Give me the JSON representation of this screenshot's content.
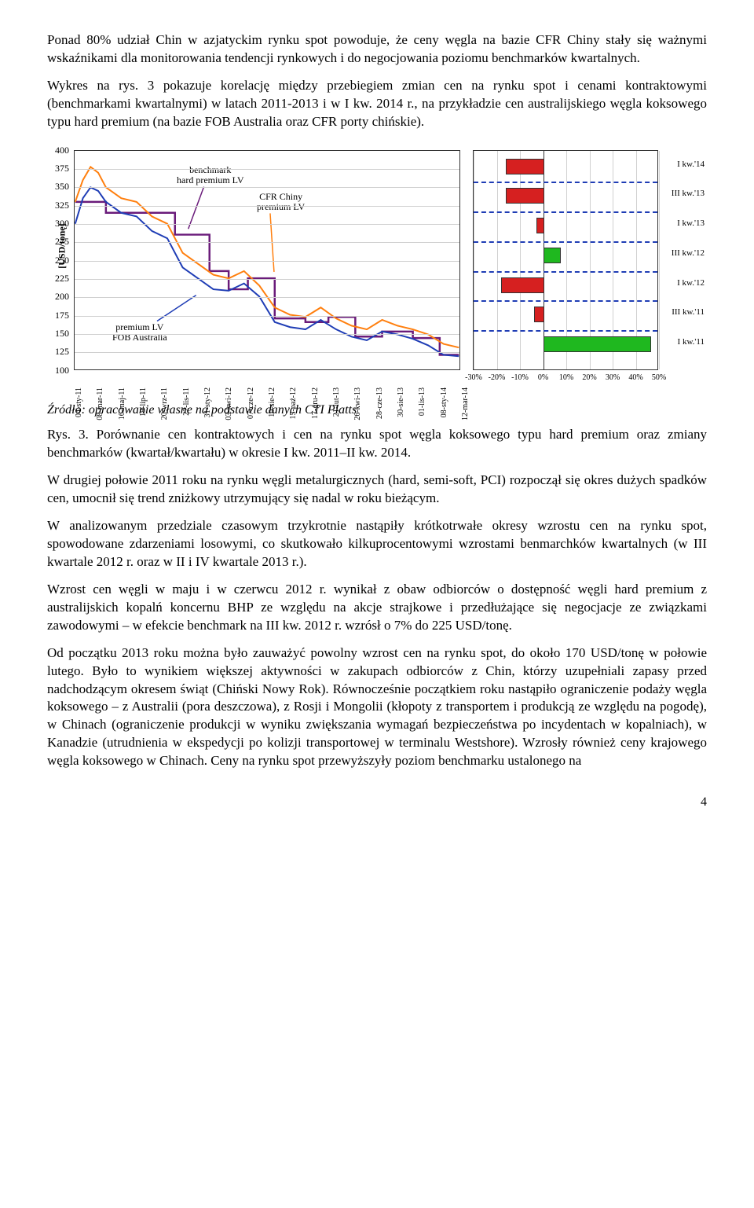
{
  "paragraphs": {
    "p1": "Ponad 80% udział Chin w azjatyckim rynku spot powoduje, że ceny węgla na bazie CFR Chiny stały się ważnymi wskaźnikami dla monitorowania tendencji rynkowych i do negocjowania poziomu benchmarków kwartalnych.",
    "p2": "Wykres na rys. 3 pokazuje korelację między przebiegiem zmian cen na rynku spot i cenami kontraktowymi (benchmarkami kwartalnymi) w latach 2011-2013 i w I kw. 2014 r., na przykładzie cen australijskiego węgla koksowego typu hard premium (na bazie FOB Australia oraz CFR porty chińskie).",
    "src": "Źródło: opracowanie własne na podstawie danych CTI Platts",
    "caption": "Rys. 3. Porównanie cen kontraktowych i cen na rynku spot węgla koksowego typu hard premium oraz zmiany benchmarków (kwartał/kwartału) w okresie I kw. 2011–II kw. 2014.",
    "p3": "W drugiej połowie 2011 roku na rynku węgli metalurgicznych (hard, semi-soft, PCI) rozpoczął się okres dużych spadków cen, umocnił się trend zniżkowy utrzymujący się nadal w roku bieżącym.",
    "p4": "W analizowanym przedziale czasowym trzykrotnie nastąpiły krótkotrwałe okresy wzrostu cen na rynku spot, spowodowane zdarzeniami losowymi, co skutkowało kilkuprocentowymi wzrostami benmarchków kwartalnych (w III kwartale 2012 r. oraz w II i IV kwartale 2013 r.).",
    "p5": "Wzrost cen węgli w maju i w czerwcu 2012 r. wynikał z obaw odbiorców o dostępność węgli hard premium z australijskich kopalń koncernu BHP ze względu na akcje strajkowe i przedłużające się negocjacje ze związkami zawodowymi – w efekcie benchmark na III kw. 2012 r. wzrósł o 7% do 225 USD/tonę.",
    "p6": "Od początku 2013 roku można było zauważyć powolny wzrost cen na rynku spot, do około 170 USD/tonę w połowie lutego. Było to wynikiem większej aktywności w zakupach odbiorców z Chin, którzy uzupełniali zapasy przed nadchodzącym okresem świąt (Chiński Nowy Rok). Równocześnie początkiem roku nastąpiło ograniczenie podaży węgla koksowego – z Australii (pora deszczowa), z Rosji i Mongolii (kłopoty z transportem i produkcją ze względu na pogodę), w Chinach (ograniczenie produkcji w wyniku zwiększania wymagań bezpieczeństwa po incydentach w kopalniach), w Kanadzie (utrudnienia w ekspedycji po kolizji transportowej w terminalu Westshore). Wzrosły również ceny krajowego węgla koksowego w Chinach. Ceny na rynku spot przewyższyły poziom benchmarku ustalonego na"
  },
  "chart": {
    "y_unit": "[USD/tonę]",
    "y_min": 100,
    "y_max": 400,
    "y_ticks": [
      100,
      125,
      150,
      175,
      200,
      225,
      250,
      275,
      300,
      325,
      350,
      375,
      400
    ],
    "x_labels": [
      "04-sty-11",
      "08-mar-11",
      "16-maj-11",
      "19-lip-11",
      "20-wrz-11",
      "22-lis-11",
      "31-sty-12",
      "03-kwi-12",
      "07-cze-12",
      "10-sie-12",
      "15-paź-12",
      "17-gru-12",
      "21-lut-13",
      "26-kwi-13",
      "28-cze-13",
      "30-sie-13",
      "01-lis-13",
      "08-sty-14",
      "12-mar-14"
    ],
    "annotations": {
      "benchmark_l1": "benchmark",
      "benchmark_l2": "hard premium LV",
      "cfr_l1": "CFR Chiny",
      "cfr_l2": "premium LV",
      "fob_l1": "premium LV",
      "fob_l2": "FOB Australia"
    },
    "colors": {
      "benchmark": "#6a1b7a",
      "cfr": "#ff7f0e",
      "fob": "#1f3db5",
      "grid": "#d0d0d0",
      "bg": "#ffffff"
    },
    "series_benchmark": [
      {
        "x": 0.0,
        "y": 330
      },
      {
        "x": 0.08,
        "y": 330
      },
      {
        "x": 0.08,
        "y": 315
      },
      {
        "x": 0.26,
        "y": 315
      },
      {
        "x": 0.26,
        "y": 285
      },
      {
        "x": 0.35,
        "y": 285
      },
      {
        "x": 0.35,
        "y": 235
      },
      {
        "x": 0.4,
        "y": 235
      },
      {
        "x": 0.4,
        "y": 210
      },
      {
        "x": 0.45,
        "y": 210
      },
      {
        "x": 0.45,
        "y": 225
      },
      {
        "x": 0.52,
        "y": 225
      },
      {
        "x": 0.52,
        "y": 170
      },
      {
        "x": 0.6,
        "y": 170
      },
      {
        "x": 0.6,
        "y": 165
      },
      {
        "x": 0.66,
        "y": 165
      },
      {
        "x": 0.66,
        "y": 172
      },
      {
        "x": 0.73,
        "y": 172
      },
      {
        "x": 0.73,
        "y": 145
      },
      {
        "x": 0.8,
        "y": 145
      },
      {
        "x": 0.8,
        "y": 152
      },
      {
        "x": 0.88,
        "y": 152
      },
      {
        "x": 0.88,
        "y": 143
      },
      {
        "x": 0.95,
        "y": 143
      },
      {
        "x": 0.95,
        "y": 120
      },
      {
        "x": 1.0,
        "y": 120
      }
    ],
    "series_cfr": [
      {
        "x": 0.0,
        "y": 330
      },
      {
        "x": 0.02,
        "y": 360
      },
      {
        "x": 0.04,
        "y": 378
      },
      {
        "x": 0.06,
        "y": 370
      },
      {
        "x": 0.08,
        "y": 350
      },
      {
        "x": 0.12,
        "y": 335
      },
      {
        "x": 0.16,
        "y": 330
      },
      {
        "x": 0.2,
        "y": 310
      },
      {
        "x": 0.24,
        "y": 300
      },
      {
        "x": 0.28,
        "y": 260
      },
      {
        "x": 0.32,
        "y": 245
      },
      {
        "x": 0.36,
        "y": 230
      },
      {
        "x": 0.4,
        "y": 225
      },
      {
        "x": 0.44,
        "y": 235
      },
      {
        "x": 0.48,
        "y": 215
      },
      {
        "x": 0.52,
        "y": 185
      },
      {
        "x": 0.56,
        "y": 175
      },
      {
        "x": 0.6,
        "y": 172
      },
      {
        "x": 0.64,
        "y": 185
      },
      {
        "x": 0.68,
        "y": 170
      },
      {
        "x": 0.72,
        "y": 160
      },
      {
        "x": 0.76,
        "y": 155
      },
      {
        "x": 0.8,
        "y": 168
      },
      {
        "x": 0.84,
        "y": 160
      },
      {
        "x": 0.88,
        "y": 155
      },
      {
        "x": 0.92,
        "y": 148
      },
      {
        "x": 0.96,
        "y": 135
      },
      {
        "x": 1.0,
        "y": 130
      }
    ],
    "series_fob": [
      {
        "x": 0.0,
        "y": 300
      },
      {
        "x": 0.02,
        "y": 335
      },
      {
        "x": 0.04,
        "y": 350
      },
      {
        "x": 0.06,
        "y": 345
      },
      {
        "x": 0.08,
        "y": 330
      },
      {
        "x": 0.12,
        "y": 315
      },
      {
        "x": 0.16,
        "y": 310
      },
      {
        "x": 0.2,
        "y": 290
      },
      {
        "x": 0.24,
        "y": 280
      },
      {
        "x": 0.28,
        "y": 240
      },
      {
        "x": 0.32,
        "y": 225
      },
      {
        "x": 0.36,
        "y": 210
      },
      {
        "x": 0.4,
        "y": 208
      },
      {
        "x": 0.44,
        "y": 218
      },
      {
        "x": 0.48,
        "y": 200
      },
      {
        "x": 0.52,
        "y": 165
      },
      {
        "x": 0.56,
        "y": 158
      },
      {
        "x": 0.6,
        "y": 155
      },
      {
        "x": 0.64,
        "y": 168
      },
      {
        "x": 0.68,
        "y": 155
      },
      {
        "x": 0.72,
        "y": 145
      },
      {
        "x": 0.76,
        "y": 140
      },
      {
        "x": 0.8,
        "y": 152
      },
      {
        "x": 0.84,
        "y": 148
      },
      {
        "x": 0.88,
        "y": 142
      },
      {
        "x": 0.92,
        "y": 133
      },
      {
        "x": 0.96,
        "y": 120
      },
      {
        "x": 1.0,
        "y": 118
      }
    ]
  },
  "barchart": {
    "x_min": -30,
    "x_max": 50,
    "x_ticks": [
      "-30%",
      "-20%",
      "-10%",
      "0%",
      "10%",
      "20%",
      "30%",
      "40%",
      "50%"
    ],
    "colors": {
      "neg": "#d62020",
      "pos": "#1fb81f",
      "dash": "#1f3db5"
    },
    "rows": [
      {
        "label": "I kw.'14",
        "value": -16
      },
      {
        "label": "III kw.'13",
        "value": -16
      },
      {
        "label": "I kw.'13",
        "value": -3
      },
      {
        "label": "III kw.'12",
        "value": 7
      },
      {
        "label": "I kw.'12",
        "value": -18
      },
      {
        "label": "III kw.'11",
        "value": -4
      },
      {
        "label": "I kw.'11",
        "value": 46
      }
    ]
  },
  "pagenum": "4"
}
